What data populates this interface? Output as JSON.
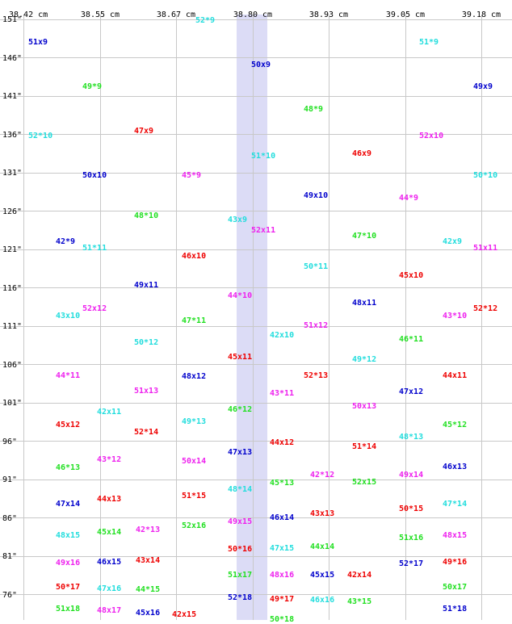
{
  "x_axis_labels": [
    "38.42 cm",
    "38.55 cm",
    "38.67 cm",
    "38.80 cm",
    "38.93 cm",
    "39.05 cm",
    "39.18 cm"
  ],
  "y_axis_labels": [
    "151\"",
    "146\"",
    "141\"",
    "136\"",
    "131\"",
    "126\"",
    "121\"",
    "116\"",
    "111\"",
    "106\"",
    "101\"",
    "96\"",
    "91\"",
    "86\"",
    "81\"",
    "76\""
  ],
  "colors": {
    "green": "#22e022",
    "red": "#ee0000",
    "blue": "#0000cc",
    "cyan": "#22dddd",
    "magenta": "#ee22ee",
    "grid": "#c8c8c8",
    "band": "#dcdcf6"
  },
  "labels": [
    {
      "text": "52*9",
      "color": "cyan"
    },
    {
      "text": "51x9",
      "color": "blue"
    },
    {
      "text": "51*9",
      "color": "cyan"
    },
    {
      "text": "50x9",
      "color": "blue"
    },
    {
      "text": "49*9",
      "color": "green"
    },
    {
      "text": "49x9",
      "color": "blue"
    },
    {
      "text": "48*9",
      "color": "green"
    },
    {
      "text": "52*10",
      "color": "cyan"
    },
    {
      "text": "47x9",
      "color": "red"
    },
    {
      "text": "52x10",
      "color": "magenta"
    },
    {
      "text": "46x9",
      "color": "red"
    },
    {
      "text": "51*10",
      "color": "cyan"
    },
    {
      "text": "50x10",
      "color": "blue"
    },
    {
      "text": "45*9",
      "color": "magenta"
    },
    {
      "text": "50*10",
      "color": "cyan"
    },
    {
      "text": "49x10",
      "color": "blue"
    },
    {
      "text": "44*9",
      "color": "magenta"
    },
    {
      "text": "48*10",
      "color": "green"
    },
    {
      "text": "43x9",
      "color": "cyan"
    },
    {
      "text": "52x11",
      "color": "magenta"
    },
    {
      "text": "47*10",
      "color": "green"
    },
    {
      "text": "42*9",
      "color": "blue"
    },
    {
      "text": "51*11",
      "color": "cyan"
    },
    {
      "text": "42x9",
      "color": "cyan"
    },
    {
      "text": "51x11",
      "color": "magenta"
    },
    {
      "text": "46x10",
      "color": "red"
    },
    {
      "text": "50*11",
      "color": "cyan"
    },
    {
      "text": "45x10",
      "color": "red"
    },
    {
      "text": "49x11",
      "color": "blue"
    },
    {
      "text": "44*10",
      "color": "magenta"
    },
    {
      "text": "48x11",
      "color": "blue"
    },
    {
      "text": "52x12",
      "color": "magenta"
    },
    {
      "text": "52*12",
      "color": "red"
    },
    {
      "text": "43x10",
      "color": "cyan"
    },
    {
      "text": "43*10",
      "color": "magenta"
    },
    {
      "text": "47*11",
      "color": "green"
    },
    {
      "text": "51x12",
      "color": "magenta"
    },
    {
      "text": "42x10",
      "color": "cyan"
    },
    {
      "text": "46*11",
      "color": "green"
    },
    {
      "text": "50*12",
      "color": "cyan"
    },
    {
      "text": "45x11",
      "color": "red"
    },
    {
      "text": "49*12",
      "color": "cyan"
    },
    {
      "text": "44*11",
      "color": "magenta"
    },
    {
      "text": "48x12",
      "color": "blue"
    },
    {
      "text": "52*13",
      "color": "red"
    },
    {
      "text": "44x11",
      "color": "red"
    },
    {
      "text": "51x13",
      "color": "magenta"
    },
    {
      "text": "43*11",
      "color": "magenta"
    },
    {
      "text": "47x12",
      "color": "blue"
    },
    {
      "text": "50x13",
      "color": "magenta"
    },
    {
      "text": "42x11",
      "color": "cyan"
    },
    {
      "text": "46*12",
      "color": "green"
    },
    {
      "text": "49*13",
      "color": "cyan"
    },
    {
      "text": "45x12",
      "color": "red"
    },
    {
      "text": "45*12",
      "color": "green"
    },
    {
      "text": "52*14",
      "color": "red"
    },
    {
      "text": "48*13",
      "color": "cyan"
    },
    {
      "text": "44x12",
      "color": "red"
    },
    {
      "text": "51*14",
      "color": "red"
    },
    {
      "text": "47x13",
      "color": "blue"
    },
    {
      "text": "43*12",
      "color": "magenta"
    },
    {
      "text": "50x14",
      "color": "magenta"
    },
    {
      "text": "46*13",
      "color": "green"
    },
    {
      "text": "46x13",
      "color": "blue"
    },
    {
      "text": "42*12",
      "color": "magenta"
    },
    {
      "text": "49x14",
      "color": "magenta"
    },
    {
      "text": "45*13",
      "color": "green"
    },
    {
      "text": "52x15",
      "color": "green"
    },
    {
      "text": "48*14",
      "color": "cyan"
    },
    {
      "text": "51*15",
      "color": "red"
    },
    {
      "text": "44x13",
      "color": "red"
    },
    {
      "text": "47x14",
      "color": "blue"
    },
    {
      "text": "47*14",
      "color": "cyan"
    },
    {
      "text": "50*15",
      "color": "red"
    },
    {
      "text": "43x13",
      "color": "red"
    },
    {
      "text": "46x14",
      "color": "blue"
    },
    {
      "text": "49x15",
      "color": "magenta"
    },
    {
      "text": "52x16",
      "color": "green"
    },
    {
      "text": "42*13",
      "color": "magenta"
    },
    {
      "text": "45x14",
      "color": "green"
    },
    {
      "text": "48x15",
      "color": "cyan"
    },
    {
      "text": "51x16",
      "color": "green"
    },
    {
      "text": "48x15",
      "color": "magenta"
    },
    {
      "text": "50*16",
      "color": "red"
    },
    {
      "text": "47x15",
      "color": "cyan"
    },
    {
      "text": "44x14",
      "color": "green"
    },
    {
      "text": "43x14",
      "color": "red"
    },
    {
      "text": "46x15",
      "color": "blue"
    },
    {
      "text": "49x16",
      "color": "magenta"
    },
    {
      "text": "52*17",
      "color": "blue"
    },
    {
      "text": "49*16",
      "color": "red"
    },
    {
      "text": "51x17",
      "color": "green"
    },
    {
      "text": "48x16",
      "color": "magenta"
    },
    {
      "text": "45x15",
      "color": "blue"
    },
    {
      "text": "42x14",
      "color": "red"
    },
    {
      "text": "50*17",
      "color": "red"
    },
    {
      "text": "47x16",
      "color": "cyan"
    },
    {
      "text": "44*15",
      "color": "green"
    },
    {
      "text": "50x17",
      "color": "green"
    },
    {
      "text": "52*18",
      "color": "blue"
    },
    {
      "text": "49*17",
      "color": "red"
    },
    {
      "text": "46x16",
      "color": "cyan"
    },
    {
      "text": "43*15",
      "color": "green"
    },
    {
      "text": "51x18",
      "color": "green"
    },
    {
      "text": "48x17",
      "color": "magenta"
    },
    {
      "text": "45x16",
      "color": "blue"
    },
    {
      "text": "42x15",
      "color": "red"
    },
    {
      "text": "51*18",
      "color": "blue"
    },
    {
      "text": "50*18",
      "color": "green"
    }
  ]
}
